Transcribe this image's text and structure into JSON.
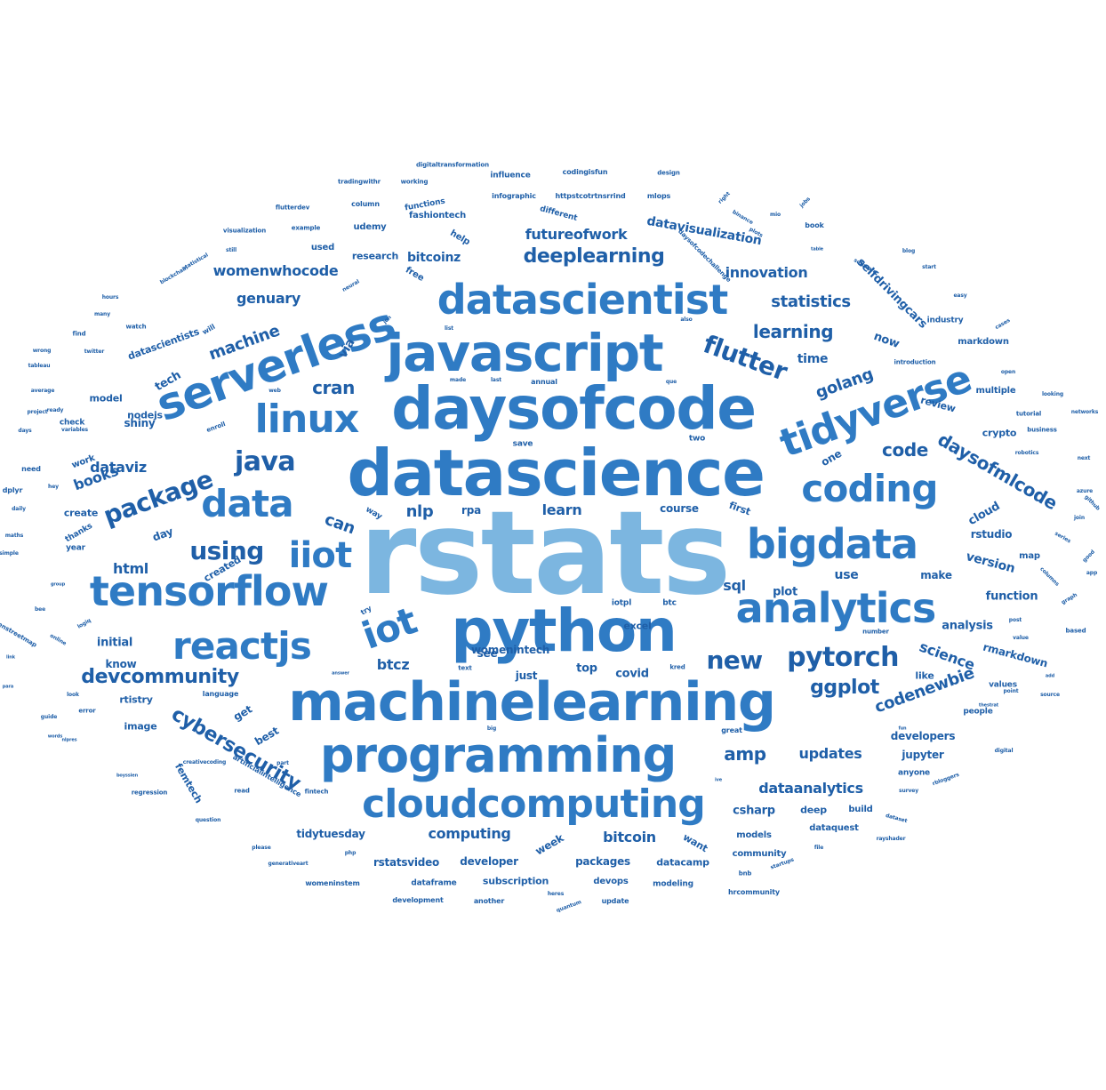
{
  "colors": {
    "main": "#1f5fa8",
    "mid": "#2f7bc4",
    "light": "#7cb6e0",
    "background": "#ffffff"
  },
  "words": [
    {
      "text": "rstats",
      "weight": 130,
      "color": "light"
    },
    {
      "text": "datascience",
      "weight": 72
    },
    {
      "text": "daysofcode",
      "weight": 66
    },
    {
      "text": "python",
      "weight": 66
    },
    {
      "text": "machinelearning",
      "weight": 60
    },
    {
      "text": "javascript",
      "weight": 58
    },
    {
      "text": "programming",
      "weight": 54
    },
    {
      "text": "serverless",
      "weight": 50,
      "rotate": -20
    },
    {
      "text": "datascientist",
      "weight": 46
    },
    {
      "text": "tensorflow",
      "weight": 46
    },
    {
      "text": "analytics",
      "weight": 46
    },
    {
      "text": "bigdata",
      "weight": 46
    },
    {
      "text": "tidyverse",
      "weight": 44,
      "rotate": -20
    },
    {
      "text": "cloudcomputing",
      "weight": 44
    },
    {
      "text": "linux",
      "weight": 44
    },
    {
      "text": "coding",
      "weight": 42
    },
    {
      "text": "reactjs",
      "weight": 42
    },
    {
      "text": "data",
      "weight": 42
    },
    {
      "text": "iot",
      "weight": 42,
      "rotate": -20
    },
    {
      "text": "iiot",
      "weight": 40
    },
    {
      "text": "pytorch",
      "weight": 30
    },
    {
      "text": "java",
      "weight": 30
    },
    {
      "text": "new",
      "weight": 28
    },
    {
      "text": "flutter",
      "weight": 28,
      "rotate": 20
    },
    {
      "text": "package",
      "weight": 28,
      "rotate": -20
    },
    {
      "text": "using",
      "weight": 28
    },
    {
      "text": "deeplearning",
      "weight": 22
    },
    {
      "text": "cybersecurity",
      "weight": 22,
      "rotate": 30
    },
    {
      "text": "ggplot",
      "weight": 22
    },
    {
      "text": "devcommunity",
      "weight": 22
    },
    {
      "text": "daysofmlcode",
      "weight": 20,
      "rotate": 30
    },
    {
      "text": "learning",
      "weight": 20
    },
    {
      "text": "code",
      "weight": 20
    },
    {
      "text": "cran",
      "weight": 20
    },
    {
      "text": "amp",
      "weight": 20
    },
    {
      "text": "statistics",
      "weight": 18
    },
    {
      "text": "codenewbie",
      "weight": 18,
      "rotate": -20
    },
    {
      "text": "dataanalytics",
      "weight": 16
    },
    {
      "text": "updates",
      "weight": 16
    },
    {
      "text": "computing",
      "weight": 16
    },
    {
      "text": "bitcoin",
      "weight": 16
    },
    {
      "text": "nlp",
      "weight": 18
    },
    {
      "text": "learn",
      "weight": 16
    },
    {
      "text": "golang",
      "weight": 18,
      "rotate": -20
    },
    {
      "text": "machine",
      "weight": 18,
      "rotate": -20
    },
    {
      "text": "science",
      "weight": 16,
      "rotate": 20
    },
    {
      "text": "womenwhocode",
      "weight": 16
    },
    {
      "text": "innovation",
      "weight": 16
    },
    {
      "text": "futureofwork",
      "weight": 16
    },
    {
      "text": "genuary",
      "weight": 16
    },
    {
      "text": "html",
      "weight": 16
    },
    {
      "text": "sql",
      "weight": 16
    },
    {
      "text": "btcz",
      "weight": 16
    },
    {
      "text": "dataviz",
      "weight": 16
    },
    {
      "text": "books",
      "weight": 16,
      "rotate": -20
    },
    {
      "text": "can",
      "weight": 18,
      "rotate": 20
    },
    {
      "text": "bitcoinz",
      "weight": 14
    },
    {
      "text": "datavisualization",
      "weight": 14,
      "rotate": 10
    },
    {
      "text": "selfdrivingcars",
      "weight": 13,
      "rotate": 45
    },
    {
      "text": "rmarkdown",
      "weight": 12,
      "rotate": 15
    },
    {
      "text": "jupyter",
      "weight": 12
    },
    {
      "text": "developers",
      "weight": 12
    },
    {
      "text": "analysis",
      "weight": 13
    },
    {
      "text": "rstudio",
      "weight": 12
    },
    {
      "text": "version",
      "weight": 14,
      "rotate": 15
    },
    {
      "text": "function",
      "weight": 13
    },
    {
      "text": "plot",
      "weight": 13
    },
    {
      "text": "use",
      "weight": 14
    },
    {
      "text": "make",
      "weight": 12
    },
    {
      "text": "csharp",
      "weight": 13
    },
    {
      "text": "deep",
      "weight": 11
    },
    {
      "text": "build",
      "weight": 10
    },
    {
      "text": "dataquest",
      "weight": 10
    },
    {
      "text": "models",
      "weight": 10
    },
    {
      "text": "community",
      "weight": 10
    },
    {
      "text": "datacamp",
      "weight": 11
    },
    {
      "text": "packages",
      "weight": 12
    },
    {
      "text": "developer",
      "weight": 12
    },
    {
      "text": "rstatsvideo",
      "weight": 12
    },
    {
      "text": "tidytuesday",
      "weight": 12
    },
    {
      "text": "subscription",
      "weight": 11
    },
    {
      "text": "devops",
      "weight": 10
    },
    {
      "text": "modeling",
      "weight": 9
    },
    {
      "text": "dataframe",
      "weight": 9
    },
    {
      "text": "womeninstem",
      "weight": 8
    },
    {
      "text": "development",
      "weight": 8
    },
    {
      "text": "another",
      "weight": 8
    },
    {
      "text": "update",
      "weight": 8
    },
    {
      "text": "hrcommunity",
      "weight": 8
    },
    {
      "text": "covid",
      "weight": 13
    },
    {
      "text": "top",
      "weight": 13
    },
    {
      "text": "just",
      "weight": 12
    },
    {
      "text": "see",
      "weight": 12
    },
    {
      "text": "initial",
      "weight": 13
    },
    {
      "text": "know",
      "weight": 12
    },
    {
      "text": "rtistry",
      "weight": 11
    },
    {
      "text": "image",
      "weight": 11
    },
    {
      "text": "femtech",
      "weight": 11,
      "rotate": 60
    },
    {
      "text": "best",
      "weight": 12,
      "rotate": -30
    },
    {
      "text": "get",
      "weight": 12,
      "rotate": -30
    },
    {
      "text": "week",
      "weight": 12,
      "rotate": -30
    },
    {
      "text": "want",
      "weight": 11,
      "rotate": 30
    },
    {
      "text": "womenintech",
      "weight": 12
    },
    {
      "text": "excel",
      "weight": 11
    },
    {
      "text": "course",
      "weight": 12
    },
    {
      "text": "rpa",
      "weight": 12
    },
    {
      "text": "crypto",
      "weight": 11
    },
    {
      "text": "review",
      "weight": 11,
      "rotate": 15
    },
    {
      "text": "multiple",
      "weight": 10
    },
    {
      "text": "markdown",
      "weight": 10
    },
    {
      "text": "industry",
      "weight": 9
    },
    {
      "text": "time",
      "weight": 14
    },
    {
      "text": "now",
      "weight": 13,
      "rotate": 20
    },
    {
      "text": "one",
      "weight": 12,
      "rotate": -30
    },
    {
      "text": "cloud",
      "weight": 13,
      "rotate": -30
    },
    {
      "text": "first",
      "weight": 11,
      "rotate": 20
    },
    {
      "text": "map",
      "weight": 10
    },
    {
      "text": "like",
      "weight": 11
    },
    {
      "text": "values",
      "weight": 9
    },
    {
      "text": "people",
      "weight": 9
    },
    {
      "text": "anyone",
      "weight": 9
    },
    {
      "text": "via",
      "weight": 14,
      "rotate": -60
    },
    {
      "text": "tech",
      "weight": 13,
      "rotate": -30
    },
    {
      "text": "nodejs",
      "weight": 11
    },
    {
      "text": "datascientists",
      "weight": 11,
      "rotate": -20
    },
    {
      "text": "model",
      "weight": 11
    },
    {
      "text": "shiny",
      "weight": 12
    },
    {
      "text": "check",
      "weight": 9
    },
    {
      "text": "work",
      "weight": 10,
      "rotate": -20
    },
    {
      "text": "create",
      "weight": 11
    },
    {
      "text": "day",
      "weight": 12,
      "rotate": -20
    },
    {
      "text": "created",
      "weight": 11,
      "rotate": -30
    },
    {
      "text": "year",
      "weight": 9
    },
    {
      "text": "thanks",
      "weight": 9,
      "rotate": -30
    },
    {
      "text": "way",
      "weight": 9,
      "rotate": 30
    },
    {
      "text": "save",
      "weight": 9
    },
    {
      "text": "two",
      "weight": 9
    },
    {
      "text": "iotpl",
      "weight": 9
    },
    {
      "text": "btc",
      "weight": 9
    },
    {
      "text": "try",
      "weight": 8,
      "rotate": -30
    },
    {
      "text": "text",
      "weight": 7
    },
    {
      "text": "kred",
      "weight": 7
    },
    {
      "text": "great",
      "weight": 8
    },
    {
      "text": "will",
      "weight": 8,
      "rotate": -30
    },
    {
      "text": "used",
      "weight": 10
    },
    {
      "text": "research",
      "weight": 11
    },
    {
      "text": "free",
      "weight": 10,
      "rotate": 30
    },
    {
      "text": "help",
      "weight": 10,
      "rotate": 30
    },
    {
      "text": "udemy",
      "weight": 10
    },
    {
      "text": "different",
      "weight": 9,
      "rotate": 15
    },
    {
      "text": "fashiontech",
      "weight": 10
    },
    {
      "text": "functions",
      "weight": 9,
      "rotate": -10
    },
    {
      "text": "column",
      "weight": 8
    },
    {
      "text": "infographic",
      "weight": 8
    },
    {
      "text": "httpstcotrtnsrrind",
      "weight": 8
    },
    {
      "text": "mlops",
      "weight": 8
    },
    {
      "text": "influence",
      "weight": 9
    },
    {
      "text": "codingisfun",
      "weight": 8
    },
    {
      "text": "design",
      "weight": 7
    },
    {
      "text": "digitaltransformation",
      "weight": 7
    },
    {
      "text": "tradingwithr",
      "weight": 7
    },
    {
      "text": "working",
      "weight": 7
    },
    {
      "text": "example",
      "weight": 7
    },
    {
      "text": "flutterdev",
      "weight": 7
    },
    {
      "text": "still",
      "weight": 6
    },
    {
      "text": "visualization",
      "weight": 7
    },
    {
      "text": "statistical",
      "weight": 6,
      "rotate": -30
    },
    {
      "text": "blockchain",
      "weight": 6,
      "rotate": -30
    },
    {
      "text": "neural",
      "weight": 6,
      "rotate": -30
    },
    {
      "text": "watch",
      "weight": 7
    },
    {
      "text": "find",
      "weight": 7
    },
    {
      "text": "many",
      "weight": 6
    },
    {
      "text": "hours",
      "weight": 6
    },
    {
      "text": "wrong",
      "weight": 6
    },
    {
      "text": "twitter",
      "weight": 6
    },
    {
      "text": "tableau",
      "weight": 6
    },
    {
      "text": "average",
      "weight": 6
    },
    {
      "text": "ready",
      "weight": 6
    },
    {
      "text": "project",
      "weight": 6
    },
    {
      "text": "days",
      "weight": 6
    },
    {
      "text": "variables",
      "weight": 6
    },
    {
      "text": "enroll",
      "weight": 7,
      "rotate": -20
    },
    {
      "text": "need",
      "weight": 8
    },
    {
      "text": "hey",
      "weight": 6
    },
    {
      "text": "dplyr",
      "weight": 8
    },
    {
      "text": "daily",
      "weight": 6
    },
    {
      "text": "maths",
      "weight": 6
    },
    {
      "text": "simple",
      "weight": 6
    },
    {
      "text": "bee",
      "weight": 6
    },
    {
      "text": "online",
      "weight": 6,
      "rotate": 30
    },
    {
      "text": "openstreetmap",
      "weight": 7,
      "rotate": 30
    },
    {
      "text": "look",
      "weight": 6
    },
    {
      "text": "language",
      "weight": 8
    },
    {
      "text": "error",
      "weight": 7
    },
    {
      "text": "guide",
      "weight": 6
    },
    {
      "text": "words",
      "weight": 5
    },
    {
      "text": "boyssien",
      "weight": 5
    },
    {
      "text": "regression",
      "weight": 7
    },
    {
      "text": "question",
      "weight": 6
    },
    {
      "text": "please",
      "weight": 6
    },
    {
      "text": "generativeart",
      "weight": 6
    },
    {
      "text": "creativecoding",
      "weight": 6
    },
    {
      "text": "artificialintelligence",
      "weight": 8,
      "rotate": 30
    },
    {
      "text": "php",
      "weight": 6
    },
    {
      "text": "fintech",
      "weight": 7
    },
    {
      "text": "read",
      "weight": 7
    },
    {
      "text": "bnb",
      "weight": 7
    },
    {
      "text": "heres",
      "weight": 6
    },
    {
      "text": "quantum",
      "weight": 6,
      "rotate": -20
    },
    {
      "text": "startups",
      "weight": 6,
      "rotate": -20
    },
    {
      "text": "file",
      "weight": 6
    },
    {
      "text": "rayshader",
      "weight": 6
    },
    {
      "text": "dataset",
      "weight": 6,
      "rotate": 15
    },
    {
      "text": "survey",
      "weight": 6
    },
    {
      "text": "rbloggers",
      "weight": 6,
      "rotate": -20
    },
    {
      "text": "digital",
      "weight": 6
    },
    {
      "text": "thestrat",
      "weight": 5
    },
    {
      "text": "point",
      "weight": 6
    },
    {
      "text": "source",
      "weight": 6
    },
    {
      "text": "add",
      "weight": 5
    },
    {
      "text": "value",
      "weight": 6
    },
    {
      "text": "number",
      "weight": 7
    },
    {
      "text": "post",
      "weight": 6
    },
    {
      "text": "based",
      "weight": 7
    },
    {
      "text": "graph",
      "weight": 6,
      "rotate": -30
    },
    {
      "text": "columns",
      "weight": 6,
      "rotate": 45
    },
    {
      "text": "series",
      "weight": 6,
      "rotate": 30
    },
    {
      "text": "good",
      "weight": 6,
      "rotate": -45
    },
    {
      "text": "app",
      "weight": 6
    },
    {
      "text": "join",
      "weight": 6
    },
    {
      "text": "azure",
      "weight": 6
    },
    {
      "text": "next",
      "weight": 6
    },
    {
      "text": "github",
      "weight": 6,
      "rotate": 45
    },
    {
      "text": "robotics",
      "weight": 6
    },
    {
      "text": "tutorial",
      "weight": 7
    },
    {
      "text": "business",
      "weight": 7
    },
    {
      "text": "networks",
      "weight": 6
    },
    {
      "text": "looking",
      "weight": 6
    },
    {
      "text": "open",
      "weight": 6
    },
    {
      "text": "introduction",
      "weight": 7
    },
    {
      "text": "cases",
      "weight": 6,
      "rotate": -30
    },
    {
      "text": "easy",
      "weight": 6
    },
    {
      "text": "start",
      "weight": 6
    },
    {
      "text": "blog",
      "weight": 6
    },
    {
      "text": "table",
      "weight": 5
    },
    {
      "text": "book",
      "weight": 8
    },
    {
      "text": "mio",
      "weight": 6
    },
    {
      "text": "jobs",
      "weight": 6,
      "rotate": -45
    },
    {
      "text": "right",
      "weight": 6,
      "rotate": -45
    },
    {
      "text": "binance",
      "weight": 6,
      "rotate": 30
    },
    {
      "text": "plots",
      "weight": 6,
      "rotate": 30
    },
    {
      "text": "software",
      "weight": 6,
      "rotate": 30
    },
    {
      "text": "daysofcodechallenge",
      "weight": 7,
      "rotate": 45
    },
    {
      "text": "also",
      "weight": 6
    },
    {
      "text": "que",
      "weight": 6
    },
    {
      "text": "annual",
      "weight": 8
    },
    {
      "text": "last",
      "weight": 6
    },
    {
      "text": "made",
      "weight": 6
    },
    {
      "text": "web",
      "weight": 6
    },
    {
      "text": "list",
      "weight": 6
    },
    {
      "text": "jon",
      "weight": 6,
      "rotate": -45
    },
    {
      "text": "big",
      "weight": 6
    },
    {
      "text": "answer",
      "weight": 5
    },
    {
      "text": "part",
      "weight": 6
    },
    {
      "text": "ive",
      "weight": 5
    },
    {
      "text": "fun",
      "weight": 5
    },
    {
      "text": "logiq",
      "weight": 6,
      "rotate": -30
    },
    {
      "text": "group",
      "weight": 5
    },
    {
      "text": "link",
      "weight": 5
    },
    {
      "text": "para",
      "weight": 5
    },
    {
      "text": "nlpres",
      "weight": 5
    },
    {
      "text": "love",
      "weight": 5
    }
  ]
}
